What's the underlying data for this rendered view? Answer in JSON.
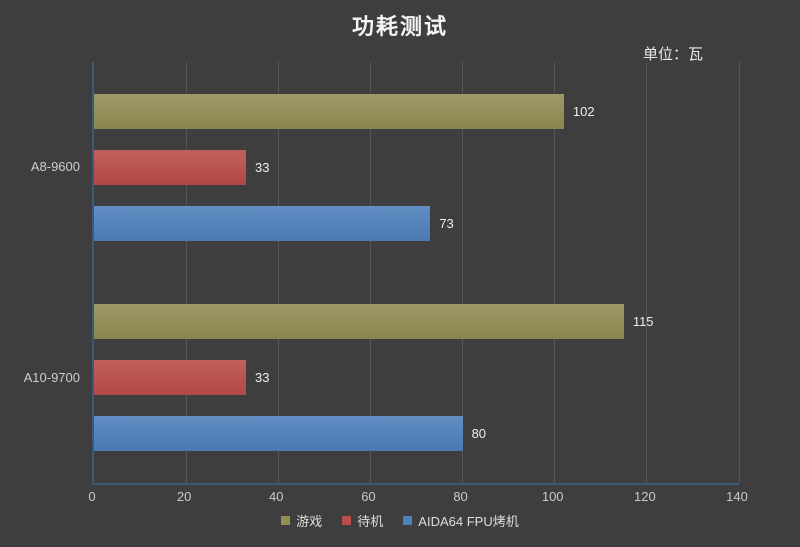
{
  "chart_data": {
    "type": "bar",
    "orientation": "horizontal",
    "title": "功耗测试",
    "unit_label": "单位：瓦",
    "categories": [
      "A8-9600",
      "A10-9700"
    ],
    "series": [
      {
        "name": "游戏",
        "color": "#938E54",
        "values": [
          102,
          115
        ]
      },
      {
        "name": "待机",
        "color": "#BB4D4B",
        "values": [
          33,
          33
        ]
      },
      {
        "name": "AIDA64 FPU烤机",
        "color": "#4E81BC",
        "values": [
          73,
          80
        ]
      }
    ],
    "xlim": [
      0,
      140
    ],
    "x_ticks": [
      0,
      20,
      40,
      60,
      80,
      100,
      120,
      140
    ],
    "grid": true,
    "legend_position": "bottom",
    "colors": {
      "background": "#3E3E3E",
      "axis_line": "#3A5A77",
      "gridline": "#575757",
      "title_text": "#F5F5F5",
      "tick_text": "#C9C9C9",
      "value_text": "#EDEDED"
    }
  }
}
